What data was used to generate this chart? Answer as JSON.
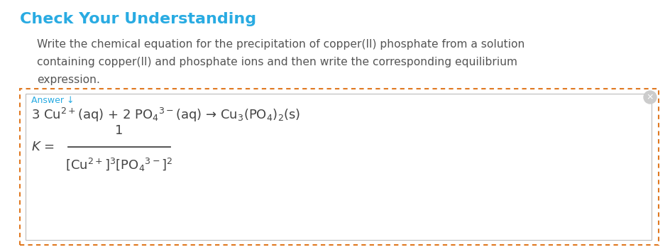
{
  "title": "Check Your Understanding",
  "title_color": "#29ABE2",
  "body_text_line1": "Write the chemical equation for the precipitation of copper(II) phosphate from a solution",
  "body_text_line2": "containing copper(II) and phosphate ions and then write the corresponding equilibrium",
  "body_text_line3": "expression.",
  "body_text_color": "#555555",
  "answer_label": "Answer ↓",
  "answer_label_color": "#29ABE2",
  "equation_line": "3 Cu$^{2+}$(aq) + 2 PO$_4$$^{3-}$(aq) → Cu$_3$(PO$_4$)$_2$(s)",
  "ksp_numerator": "1",
  "ksp_left": "$K$ = ",
  "ksp_denominator": "[Cu$^{2+}$]$^3$[PO$_4$$^{3-}$]$^2$",
  "eq_text_color": "#444444",
  "box_border_color": "#E07820",
  "inner_box_border_color": "#BBBBBB",
  "background_color": "#FFFFFF",
  "circle_color": "#CCCCCC"
}
